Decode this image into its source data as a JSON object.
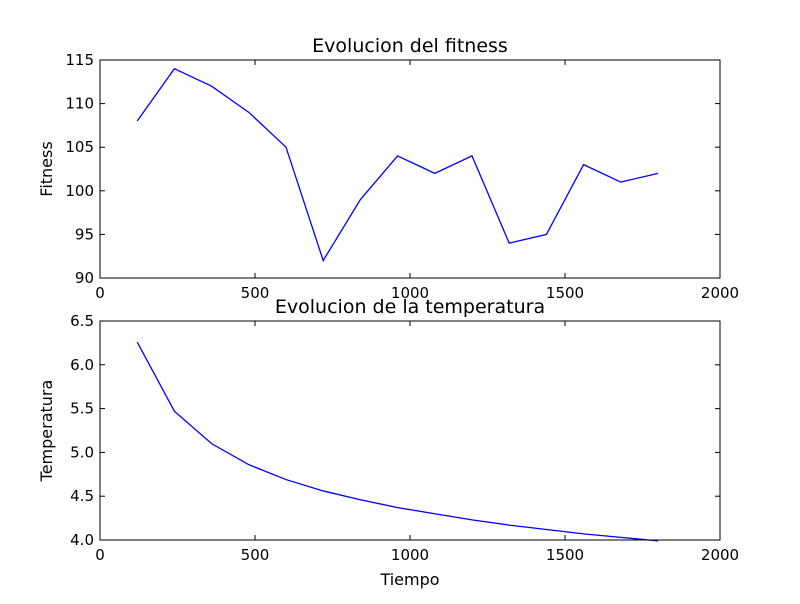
{
  "colors": {
    "line": "#0000ff",
    "axes": "#000000",
    "background": "#ffffff"
  },
  "chart_data": [
    {
      "type": "line",
      "title": "Evolucion del fitness",
      "xlabel": "",
      "ylabel": "Fitness",
      "xlim": [
        0,
        2000
      ],
      "ylim": [
        90,
        115
      ],
      "xticks": [
        "0",
        "500",
        "1000",
        "1500",
        "2000"
      ],
      "yticks": [
        "90",
        "95",
        "100",
        "105",
        "110",
        "115"
      ],
      "grid": false,
      "series": [
        {
          "x": [
            120,
            240,
            360,
            480,
            600,
            720,
            840,
            960,
            1080,
            1200,
            1320,
            1440,
            1560,
            1680,
            1800
          ],
          "y": [
            108,
            114,
            112,
            109,
            105,
            92,
            99,
            104,
            102,
            104,
            94,
            95,
            103,
            101,
            102
          ]
        }
      ]
    },
    {
      "type": "line",
      "title": "Evolucion de la temperatura",
      "xlabel": "Tiempo",
      "ylabel": "Temperatura",
      "xlim": [
        0,
        2000
      ],
      "ylim": [
        4.0,
        6.5
      ],
      "xticks": [
        "0",
        "500",
        "1000",
        "1500",
        "2000"
      ],
      "yticks": [
        "4.0",
        "4.5",
        "5.0",
        "5.5",
        "6.0",
        "6.5"
      ],
      "grid": false,
      "series": [
        {
          "x": [
            120,
            240,
            360,
            480,
            600,
            720,
            840,
            960,
            1080,
            1200,
            1320,
            1440,
            1560,
            1680,
            1800
          ],
          "y": [
            6.26,
            5.47,
            5.1,
            4.86,
            4.69,
            4.56,
            4.46,
            4.37,
            4.3,
            4.23,
            4.17,
            4.12,
            4.07,
            4.03,
            3.99
          ]
        }
      ]
    }
  ]
}
